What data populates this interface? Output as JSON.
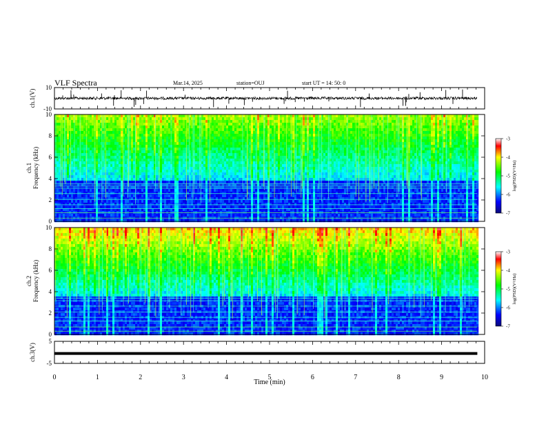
{
  "header": {
    "title": "VLF Spectra",
    "date": "Mar.14, 2025",
    "station": "station=OUJ",
    "start_ut": "start UT =   14: 50: 0"
  },
  "chart_data": [
    {
      "type": "line",
      "panel": "ch1-waveform",
      "ylabel": "ch.1(V)",
      "ylim": [
        -10,
        10
      ],
      "yticks": [
        "10",
        "-10"
      ],
      "baseline": 0,
      "color": "#000000"
    },
    {
      "type": "heatmap",
      "panel": "ch1-spectrogram",
      "ylabel_lines": [
        "ch.1",
        "Frequency  (kHz)"
      ],
      "ylim": [
        0,
        10
      ],
      "yticks": [
        "0",
        "2",
        "4",
        "6",
        "8",
        "10"
      ],
      "colorbar": {
        "label": "log(PSD)(V²/Hz)",
        "min": -7,
        "max": -3,
        "ticks": [
          "-3",
          "-4",
          "-5",
          "-6",
          "-7"
        ]
      },
      "narrowband_lines_khz": [
        0.3,
        0.8,
        1.2,
        1.55,
        2.05,
        2.6,
        3.1,
        3.3,
        3.5
      ],
      "sferic_cutoff_khz": 4.0
    },
    {
      "type": "heatmap",
      "panel": "ch2-spectrogram",
      "ylabel_lines": [
        "ch.2",
        "Frequency  (kHz)"
      ],
      "ylim": [
        0,
        10
      ],
      "yticks": [
        "0",
        "2",
        "4",
        "6",
        "8",
        "10"
      ],
      "colorbar": {
        "label": "log(PSD)(V²/Hz)",
        "min": -7,
        "max": -3,
        "ticks": [
          "-3",
          "-4",
          "-5",
          "-6",
          "-7"
        ]
      },
      "narrowband_lines_khz": [
        0.3,
        0.7,
        1.25,
        1.6,
        2.1,
        2.65,
        3.15,
        3.4
      ],
      "sferic_cutoff_khz": 3.6
    },
    {
      "type": "line",
      "panel": "ch3-waveform",
      "ylabel": "ch.3(V)",
      "ylim": [
        -5,
        5
      ],
      "yticks": [
        "5",
        "-5"
      ],
      "level": -0.5,
      "color": "#000000"
    }
  ],
  "xaxis": {
    "label": "Time  (min)",
    "range": [
      0,
      10
    ],
    "ticks": [
      "0",
      "1",
      "2",
      "3",
      "4",
      "5",
      "6",
      "7",
      "8",
      "9",
      "10"
    ],
    "data_end": 9.83
  }
}
